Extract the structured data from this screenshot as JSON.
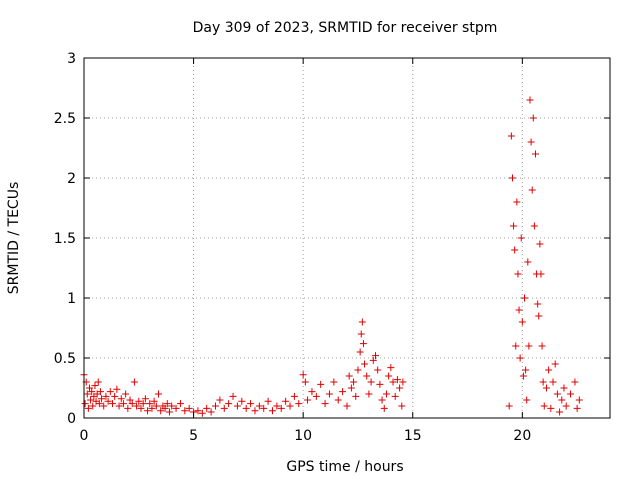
{
  "chart_data": {
    "type": "scatter",
    "title": "Day 309 of 2023, SRMTID for receiver stpm",
    "xlabel": "GPS time / hours",
    "ylabel": "SRMTID / TECUs",
    "xlim": [
      0,
      24
    ],
    "ylim": [
      0,
      3
    ],
    "xticks": [
      0,
      5,
      10,
      15,
      20
    ],
    "yticks": [
      0,
      0.5,
      1,
      1.5,
      2,
      2.5,
      3
    ],
    "xtick_labels": [
      "0",
      "5",
      "10",
      "15",
      "20"
    ],
    "ytick_labels": [
      "0",
      "0.5",
      "1",
      "1.5",
      "2",
      "2.5",
      "3"
    ],
    "grid": true,
    "marker": "+",
    "series": [
      {
        "name": "SRMTID",
        "color": "#e00000",
        "points": [
          [
            0.0,
            0.36
          ],
          [
            0.05,
            0.12
          ],
          [
            0.1,
            0.3
          ],
          [
            0.15,
            0.2
          ],
          [
            0.2,
            0.08
          ],
          [
            0.25,
            0.25
          ],
          [
            0.3,
            0.15
          ],
          [
            0.35,
            0.22
          ],
          [
            0.4,
            0.1
          ],
          [
            0.45,
            0.18
          ],
          [
            0.5,
            0.27
          ],
          [
            0.55,
            0.14
          ],
          [
            0.6,
            0.2
          ],
          [
            0.65,
            0.3
          ],
          [
            0.7,
            0.12
          ],
          [
            0.75,
            0.22
          ],
          [
            0.8,
            0.16
          ],
          [
            0.9,
            0.1
          ],
          [
            1.0,
            0.18
          ],
          [
            1.1,
            0.14
          ],
          [
            1.2,
            0.22
          ],
          [
            1.3,
            0.12
          ],
          [
            1.4,
            0.18
          ],
          [
            1.5,
            0.24
          ],
          [
            1.6,
            0.1
          ],
          [
            1.7,
            0.16
          ],
          [
            1.8,
            0.12
          ],
          [
            1.9,
            0.2
          ],
          [
            2.0,
            0.08
          ],
          [
            2.1,
            0.15
          ],
          [
            2.2,
            0.12
          ],
          [
            2.3,
            0.3
          ],
          [
            2.4,
            0.1
          ],
          [
            2.5,
            0.14
          ],
          [
            2.6,
            0.08
          ],
          [
            2.7,
            0.12
          ],
          [
            2.8,
            0.16
          ],
          [
            2.9,
            0.06
          ],
          [
            3.0,
            0.12
          ],
          [
            3.1,
            0.08
          ],
          [
            3.2,
            0.14
          ],
          [
            3.3,
            0.1
          ],
          [
            3.4,
            0.2
          ],
          [
            3.5,
            0.06
          ],
          [
            3.6,
            0.1
          ],
          [
            3.7,
            0.08
          ],
          [
            3.8,
            0.12
          ],
          [
            3.9,
            0.05
          ],
          [
            4.0,
            0.1
          ],
          [
            4.2,
            0.08
          ],
          [
            4.4,
            0.12
          ],
          [
            4.6,
            0.06
          ],
          [
            4.8,
            0.08
          ],
          [
            5.0,
            0.05
          ],
          [
            5.2,
            0.06
          ],
          [
            5.4,
            0.04
          ],
          [
            5.6,
            0.08
          ],
          [
            5.8,
            0.05
          ],
          [
            6.0,
            0.1
          ],
          [
            6.2,
            0.15
          ],
          [
            6.4,
            0.08
          ],
          [
            6.6,
            0.12
          ],
          [
            6.8,
            0.18
          ],
          [
            7.0,
            0.1
          ],
          [
            7.2,
            0.14
          ],
          [
            7.4,
            0.08
          ],
          [
            7.6,
            0.12
          ],
          [
            7.8,
            0.06
          ],
          [
            8.0,
            0.1
          ],
          [
            8.2,
            0.08
          ],
          [
            8.4,
            0.14
          ],
          [
            8.6,
            0.06
          ],
          [
            8.8,
            0.1
          ],
          [
            9.0,
            0.08
          ],
          [
            9.2,
            0.14
          ],
          [
            9.4,
            0.1
          ],
          [
            9.6,
            0.18
          ],
          [
            9.8,
            0.12
          ],
          [
            10.0,
            0.36
          ],
          [
            10.1,
            0.3
          ],
          [
            10.2,
            0.15
          ],
          [
            10.4,
            0.22
          ],
          [
            10.6,
            0.18
          ],
          [
            10.8,
            0.28
          ],
          [
            11.0,
            0.12
          ],
          [
            11.2,
            0.2
          ],
          [
            11.4,
            0.3
          ],
          [
            11.6,
            0.15
          ],
          [
            11.8,
            0.22
          ],
          [
            12.0,
            0.1
          ],
          [
            12.1,
            0.35
          ],
          [
            12.2,
            0.25
          ],
          [
            12.3,
            0.3
          ],
          [
            12.4,
            0.18
          ],
          [
            12.5,
            0.4
          ],
          [
            12.6,
            0.55
          ],
          [
            12.65,
            0.7
          ],
          [
            12.7,
            0.8
          ],
          [
            12.75,
            0.62
          ],
          [
            12.8,
            0.45
          ],
          [
            12.9,
            0.35
          ],
          [
            13.0,
            0.2
          ],
          [
            13.1,
            0.3
          ],
          [
            13.2,
            0.48
          ],
          [
            13.3,
            0.52
          ],
          [
            13.4,
            0.4
          ],
          [
            13.5,
            0.28
          ],
          [
            13.6,
            0.15
          ],
          [
            13.7,
            0.08
          ],
          [
            13.8,
            0.2
          ],
          [
            13.9,
            0.35
          ],
          [
            14.0,
            0.42
          ],
          [
            14.1,
            0.3
          ],
          [
            14.2,
            0.18
          ],
          [
            14.3,
            0.32
          ],
          [
            14.4,
            0.25
          ],
          [
            14.5,
            0.1
          ],
          [
            14.55,
            0.3
          ],
          [
            19.4,
            0.1
          ],
          [
            19.5,
            2.35
          ],
          [
            19.55,
            2.0
          ],
          [
            19.6,
            1.6
          ],
          [
            19.65,
            1.4
          ],
          [
            19.7,
            0.6
          ],
          [
            19.75,
            1.8
          ],
          [
            19.8,
            1.2
          ],
          [
            19.85,
            0.9
          ],
          [
            19.9,
            0.5
          ],
          [
            19.95,
            1.5
          ],
          [
            20.0,
            0.8
          ],
          [
            20.05,
            0.35
          ],
          [
            20.1,
            1.0
          ],
          [
            20.15,
            0.4
          ],
          [
            20.2,
            0.15
          ],
          [
            20.25,
            1.3
          ],
          [
            20.3,
            0.6
          ],
          [
            20.35,
            2.65
          ],
          [
            20.4,
            2.3
          ],
          [
            20.45,
            1.9
          ],
          [
            20.5,
            2.5
          ],
          [
            20.55,
            1.6
          ],
          [
            20.6,
            2.2
          ],
          [
            20.65,
            1.2
          ],
          [
            20.7,
            0.95
          ],
          [
            20.75,
            0.85
          ],
          [
            20.8,
            1.45
          ],
          [
            20.85,
            1.2
          ],
          [
            20.9,
            0.6
          ],
          [
            20.95,
            0.3
          ],
          [
            21.0,
            0.1
          ],
          [
            21.1,
            0.25
          ],
          [
            21.2,
            0.4
          ],
          [
            21.3,
            0.08
          ],
          [
            21.4,
            0.3
          ],
          [
            21.5,
            0.45
          ],
          [
            21.6,
            0.2
          ],
          [
            21.7,
            0.05
          ],
          [
            21.8,
            0.15
          ],
          [
            21.9,
            0.25
          ],
          [
            22.0,
            0.1
          ],
          [
            22.2,
            0.2
          ],
          [
            22.4,
            0.3
          ],
          [
            22.5,
            0.08
          ],
          [
            22.6,
            0.15
          ]
        ]
      }
    ]
  }
}
